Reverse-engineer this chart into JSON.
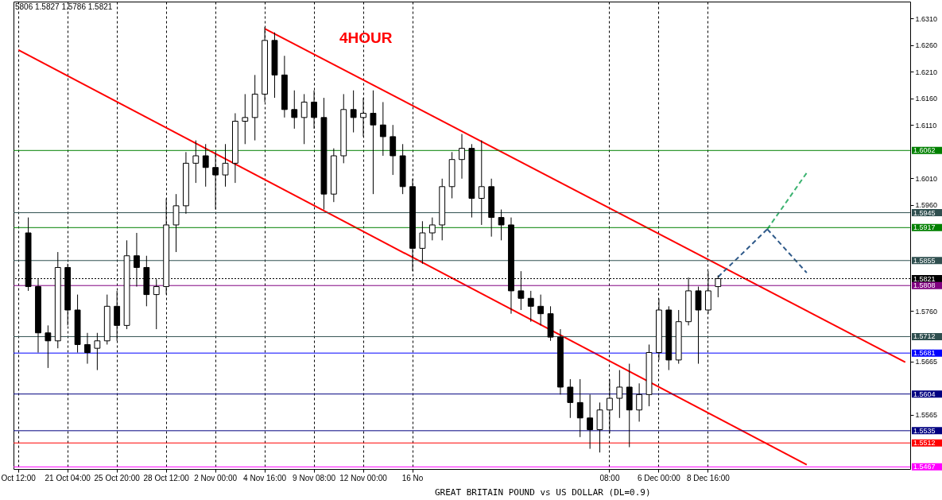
{
  "chart_data": {
    "type": "candlestick",
    "title": "4HOUR",
    "annotations": [
      "5806 1.5827 1.5786 1.5821",
      "GREAT BRITAIN POUND vs US DOLLAR (DL=0.9)"
    ],
    "categories": [
      "Oct 12:00",
      null,
      null,
      null,
      null,
      "21 Oct 04:00",
      null,
      null,
      null,
      null,
      "25 Oct 20:00",
      null,
      null,
      null,
      null,
      "28 Oct 12:00",
      null,
      null,
      null,
      null,
      "2 Nov 00:00",
      null,
      null,
      null,
      null,
      "4 Nov 16:00",
      null,
      null,
      null,
      null,
      "9 Nov 08:00",
      null,
      null,
      null,
      null,
      "12 Nov 00:00",
      null,
      null,
      null,
      null,
      "16 No",
      null,
      null,
      null,
      null,
      null,
      null,
      null,
      null,
      null,
      null,
      null,
      null,
      null,
      null,
      null,
      null,
      null,
      null,
      null,
      "08:00",
      null,
      null,
      null,
      null,
      "6 Dec 00:00",
      null,
      null,
      null,
      null,
      "8 Dec 16:00",
      null,
      null,
      null,
      null,
      null,
      null,
      null,
      null,
      null,
      null,
      null,
      null,
      null,
      null,
      null,
      null,
      null,
      null,
      null,
      null
    ],
    "ohlc": [
      null,
      [
        1.5907,
        1.5936,
        1.5798,
        1.5806
      ],
      [
        1.5806,
        1.582,
        1.5682,
        1.5719
      ],
      [
        1.5719,
        1.5733,
        1.5653,
        1.5704
      ],
      [
        1.5704,
        1.5871,
        1.569,
        1.5842
      ],
      [
        1.5842,
        1.5849,
        1.5733,
        1.5762
      ],
      [
        1.5762,
        1.5791,
        1.5682,
        1.5697
      ],
      [
        1.5697,
        1.5719,
        1.5661,
        1.5682
      ],
      [
        1.569,
        1.5719,
        1.5649,
        1.5704
      ],
      [
        1.5704,
        1.5791,
        1.5697,
        1.5769
      ],
      [
        1.5769,
        1.5798,
        1.5704,
        1.5733
      ],
      [
        1.5733,
        1.5893,
        1.5726,
        1.5864
      ],
      [
        1.5864,
        1.5907,
        1.5806,
        1.5842
      ],
      [
        1.5842,
        1.5864,
        1.5769,
        1.5791
      ],
      [
        1.5791,
        1.582,
        1.5726,
        1.5806
      ],
      [
        1.5806,
        1.5972,
        1.5791,
        1.5922
      ],
      [
        1.5922,
        1.598,
        1.5871,
        1.5958
      ],
      [
        1.5958,
        1.6059,
        1.5943,
        1.6038
      ],
      [
        1.6038,
        1.6081,
        1.6001,
        1.6052
      ],
      [
        1.6052,
        1.6074,
        1.5994,
        1.603
      ],
      [
        1.603,
        1.6059,
        1.5951,
        1.6016
      ],
      [
        1.6016,
        1.6074,
        1.5994,
        1.6038
      ],
      [
        1.6038,
        1.6132,
        1.6001,
        1.6117
      ],
      [
        1.6117,
        1.6168,
        1.6074,
        1.6124
      ],
      [
        1.6124,
        1.6204,
        1.6081,
        1.6168
      ],
      [
        1.6168,
        1.6294,
        1.6153,
        1.6269
      ],
      [
        1.6269,
        1.6284,
        1.6161,
        1.6204
      ],
      [
        1.6204,
        1.624,
        1.6124,
        1.6139
      ],
      [
        1.6139,
        1.6175,
        1.6103,
        1.6124
      ],
      [
        1.6124,
        1.6168,
        1.6074,
        1.6153
      ],
      [
        1.6153,
        1.6175,
        1.6103,
        1.6124
      ],
      [
        1.6124,
        1.6161,
        1.5951,
        1.598
      ],
      [
        1.598,
        1.6066,
        1.5965,
        1.6052
      ],
      [
        1.6052,
        1.6168,
        1.6038,
        1.6139
      ],
      [
        1.6139,
        1.6175,
        1.6096,
        1.6124
      ],
      [
        1.6124,
        1.6161,
        1.6088,
        1.6132
      ],
      [
        1.6132,
        1.6175,
        1.598,
        1.611
      ],
      [
        1.611,
        1.6153,
        1.6052,
        1.6088
      ],
      [
        1.6088,
        1.611,
        1.6016,
        1.6052
      ],
      [
        1.6052,
        1.6074,
        1.598,
        1.5994
      ],
      [
        1.5994,
        1.6009,
        1.5835,
        1.5878
      ],
      [
        1.5878,
        1.5929,
        1.5849,
        1.5907
      ],
      [
        1.5907,
        1.5936,
        1.5893,
        1.5922
      ],
      [
        1.5922,
        1.6009,
        1.5893,
        1.5994
      ],
      [
        1.5994,
        1.6059,
        1.5972,
        1.6045
      ],
      [
        1.6045,
        1.6093,
        1.6009,
        1.6066
      ],
      [
        1.6066,
        1.6074,
        1.5936,
        1.5972
      ],
      [
        1.5972,
        1.6081,
        1.5922,
        1.5994
      ],
      [
        1.5994,
        1.6009,
        1.59,
        1.5936
      ],
      [
        1.5936,
        1.5951,
        1.5893,
        1.5922
      ],
      [
        1.5922,
        1.5936,
        1.5755,
        1.5798
      ],
      [
        1.5798,
        1.5835,
        1.5762,
        1.5784
      ],
      [
        1.5784,
        1.5798,
        1.574,
        1.5769
      ],
      [
        1.5769,
        1.5791,
        1.5733,
        1.5755
      ],
      [
        1.5755,
        1.5769,
        1.5704,
        1.5711
      ],
      [
        1.5711,
        1.5726,
        1.5603,
        1.5617
      ],
      [
        1.5617,
        1.5632,
        1.5559,
        1.5588
      ],
      [
        1.5588,
        1.5632,
        1.5523,
        1.5559
      ],
      [
        1.5559,
        1.5603,
        1.5501,
        1.5537
      ],
      [
        1.5537,
        1.5588,
        1.5494,
        1.5574
      ],
      [
        1.5574,
        1.5632,
        1.553,
        1.5596
      ],
      [
        1.5596,
        1.5649,
        1.5559,
        1.5617
      ],
      [
        1.5617,
        1.5661,
        1.5504,
        1.5574
      ],
      [
        1.5574,
        1.5624,
        1.5552,
        1.5603
      ],
      [
        1.5603,
        1.5697,
        1.5581,
        1.5682
      ],
      [
        1.5682,
        1.5784,
        1.5668,
        1.5762
      ],
      [
        1.5762,
        1.5769,
        1.5649,
        1.5668
      ],
      [
        1.5668,
        1.5762,
        1.5661,
        1.574
      ],
      [
        1.574,
        1.5823,
        1.5733,
        1.5798
      ],
      [
        1.5798,
        1.5806,
        1.5661,
        1.5762
      ],
      [
        1.5762,
        1.5835,
        1.5755,
        1.5798
      ],
      [
        1.5806,
        1.5827,
        1.5786,
        1.5821
      ],
      null,
      null,
      null,
      null,
      null,
      null,
      null,
      null,
      null,
      null,
      null,
      null,
      null,
      null,
      null,
      null,
      null,
      null,
      null
    ],
    "series": [
      {
        "type": "line",
        "color": "#ff0000",
        "line_style": "solid",
        "values": [
          null,
          null,
          null,
          null,
          null,
          null,
          null,
          null,
          null,
          null,
          null,
          null,
          null,
          null,
          null,
          null,
          null,
          null,
          null,
          null,
          null,
          null,
          null,
          null,
          null,
          1.6291,
          null,
          null,
          null,
          null,
          null,
          null,
          null,
          null,
          null,
          null,
          null,
          null,
          null,
          null,
          null,
          null,
          null,
          null,
          null,
          null,
          null,
          null,
          null,
          null,
          null,
          null,
          null,
          null,
          null,
          null,
          null,
          null,
          null,
          null,
          null,
          null,
          null,
          null,
          null,
          null,
          null,
          null,
          null,
          null,
          null,
          null,
          null,
          null,
          null,
          null,
          null,
          null,
          null,
          null,
          null,
          null,
          null,
          null,
          null,
          null,
          null,
          null,
          null,
          null,
          1.5664
        ]
      },
      {
        "type": "line",
        "color": "#ff0000",
        "line_style": "solid",
        "values": [
          1.6251,
          null,
          null,
          null,
          null,
          null,
          null,
          null,
          null,
          null,
          null,
          null,
          null,
          null,
          null,
          null,
          null,
          null,
          null,
          null,
          null,
          null,
          null,
          null,
          null,
          null,
          null,
          null,
          null,
          null,
          null,
          null,
          null,
          null,
          null,
          null,
          null,
          null,
          null,
          null,
          null,
          null,
          null,
          null,
          null,
          null,
          null,
          null,
          null,
          null,
          null,
          null,
          null,
          null,
          null,
          null,
          null,
          null,
          null,
          null,
          null,
          null,
          null,
          null,
          null,
          null,
          null,
          null,
          null,
          null,
          null,
          null,
          null,
          null,
          null,
          null,
          null,
          null,
          null,
          null,
          1.5471,
          null,
          null,
          null,
          null,
          null,
          null,
          null,
          null,
          null,
          null
        ]
      },
      {
        "type": "line",
        "color": "#2f5a8a",
        "line_style": "dashed",
        "values": [
          null,
          null,
          null,
          null,
          null,
          null,
          null,
          null,
          null,
          null,
          null,
          null,
          null,
          null,
          null,
          null,
          null,
          null,
          null,
          null,
          null,
          null,
          null,
          null,
          null,
          null,
          null,
          null,
          null,
          null,
          null,
          null,
          null,
          null,
          null,
          null,
          null,
          null,
          null,
          null,
          null,
          null,
          null,
          null,
          null,
          null,
          null,
          null,
          null,
          null,
          null,
          null,
          null,
          null,
          null,
          null,
          null,
          null,
          null,
          null,
          null,
          null,
          null,
          null,
          null,
          null,
          null,
          null,
          null,
          null,
          null,
          1.5824,
          null,
          null,
          null,
          null,
          1.5914,
          null,
          null,
          null,
          null,
          null,
          null,
          null,
          null,
          null,
          null,
          null,
          null,
          null,
          null
        ]
      },
      {
        "type": "line",
        "color": "#3cb371",
        "line_style": "dashed",
        "values": [
          null,
          null,
          null,
          null,
          null,
          null,
          null,
          null,
          null,
          null,
          null,
          null,
          null,
          null,
          null,
          null,
          null,
          null,
          null,
          null,
          null,
          null,
          null,
          null,
          null,
          null,
          null,
          null,
          null,
          null,
          null,
          null,
          null,
          null,
          null,
          null,
          null,
          null,
          null,
          null,
          null,
          null,
          null,
          null,
          null,
          null,
          null,
          null,
          null,
          null,
          null,
          null,
          null,
          null,
          null,
          null,
          null,
          null,
          null,
          null,
          null,
          null,
          null,
          null,
          null,
          null,
          null,
          null,
          null,
          null,
          null,
          null,
          null,
          null,
          null,
          null,
          1.5914,
          null,
          null,
          null,
          1.602,
          null,
          null,
          null,
          null,
          null,
          null,
          null,
          null,
          null,
          null
        ]
      },
      {
        "type": "line",
        "color": "#2f5a8a",
        "line_style": "dashed",
        "values": [
          null,
          null,
          null,
          null,
          null,
          null,
          null,
          null,
          null,
          null,
          null,
          null,
          null,
          null,
          null,
          null,
          null,
          null,
          null,
          null,
          null,
          null,
          null,
          null,
          null,
          null,
          null,
          null,
          null,
          null,
          null,
          null,
          null,
          null,
          null,
          null,
          null,
          null,
          null,
          null,
          null,
          null,
          null,
          null,
          null,
          null,
          null,
          null,
          null,
          null,
          null,
          null,
          null,
          null,
          null,
          null,
          null,
          null,
          null,
          null,
          null,
          null,
          null,
          null,
          null,
          null,
          null,
          null,
          null,
          null,
          null,
          null,
          null,
          null,
          null,
          null,
          1.5914,
          null,
          null,
          null,
          1.5832,
          null,
          null,
          null,
          null,
          null,
          null,
          null,
          null,
          null,
          null
        ]
      }
    ],
    "ylim": [
      1.5463,
      1.6342
    ],
    "yticks": [
      {
        "value": 1.631,
        "label": "1.6310"
      },
      {
        "value": 1.626,
        "label": "1.6260"
      },
      {
        "value": 1.621,
        "label": "1.6210"
      },
      {
        "value": 1.616,
        "label": "1.6160"
      },
      {
        "value": 1.611,
        "label": "1.6110"
      },
      {
        "value": 1.601,
        "label": "1.6010"
      },
      {
        "value": 1.596,
        "label": "1.5960"
      },
      {
        "value": 1.576,
        "label": "1.5760"
      },
      {
        "value": 1.5665,
        "label": "1.5665"
      },
      {
        "value": 1.5565,
        "label": "1.5565"
      }
    ],
    "ref_lines": [
      {
        "axis": "y",
        "value": 1.6062,
        "label": "1.6062",
        "color": "#008000",
        "line_style": "solid"
      },
      {
        "axis": "y",
        "value": 1.5945,
        "label": "1.5945",
        "color": "#2f4f4f",
        "line_style": "solid"
      },
      {
        "axis": "y",
        "value": 1.5917,
        "label": "1.5917",
        "color": "#008000",
        "line_style": "solid"
      },
      {
        "axis": "y",
        "value": 1.5855,
        "label": "1.5855",
        "color": "#2f4f4f",
        "line_style": "solid"
      },
      {
        "axis": "y",
        "value": 1.5821,
        "label": "1.5821",
        "color": "#000000",
        "line_style": "dotted"
      },
      {
        "axis": "y",
        "value": 1.5808,
        "label": "1.5808",
        "color": "#800080",
        "line_style": "solid"
      },
      {
        "axis": "y",
        "value": 1.5712,
        "label": "1.5712",
        "color": "#2f4f4f",
        "line_style": "solid"
      },
      {
        "axis": "y",
        "value": 1.5681,
        "label": "1.5681",
        "color": "#0000ff",
        "line_style": "solid"
      },
      {
        "axis": "y",
        "value": 1.5604,
        "label": "1.5604",
        "color": "#000080",
        "line_style": "solid"
      },
      {
        "axis": "y",
        "value": 1.5535,
        "label": "1.5535",
        "color": "#000080",
        "line_style": "solid"
      },
      {
        "axis": "y",
        "value": 1.5512,
        "label": "1.5512",
        "color": "#ff0000",
        "line_style": "solid"
      },
      {
        "axis": "y",
        "value": 1.5467,
        "label": "1.5467",
        "color": "#ff00ff",
        "line_style": "solid"
      }
    ],
    "grid": "x"
  }
}
